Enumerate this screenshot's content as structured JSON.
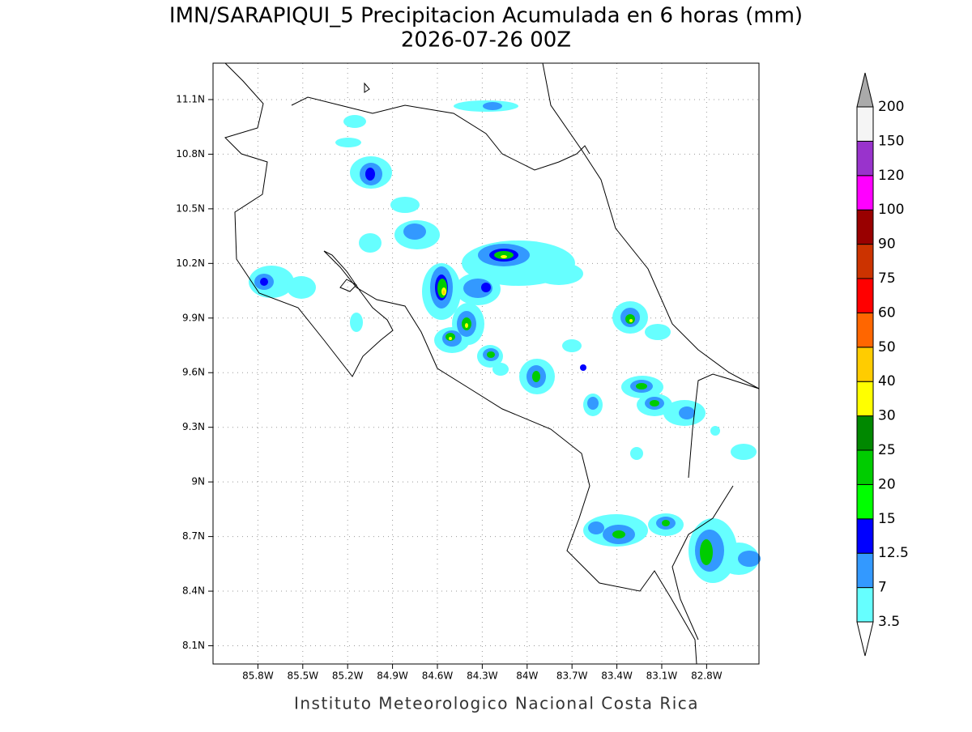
{
  "header": {
    "title": "IMN/SARAPIQUI_5 Precipitacion Acumulada en 6 horas (mm)",
    "subtitle": "2026-07-26 00Z"
  },
  "map": {
    "lonlim": [
      -86.1,
      -82.45
    ],
    "latlim": [
      8.0,
      11.3
    ],
    "lonticks": [
      {
        "value": -85.8,
        "label": "85.8W"
      },
      {
        "value": -85.5,
        "label": "85.5W"
      },
      {
        "value": -85.2,
        "label": "85.2W"
      },
      {
        "value": -84.9,
        "label": "84.9W"
      },
      {
        "value": -84.6,
        "label": "84.6W"
      },
      {
        "value": -84.3,
        "label": "84.3W"
      },
      {
        "value": -84.0,
        "label": "84W"
      },
      {
        "value": -83.7,
        "label": "83.7W"
      },
      {
        "value": -83.4,
        "label": "83.4W"
      },
      {
        "value": -83.1,
        "label": "83.1W"
      },
      {
        "value": -82.8,
        "label": "82.8W"
      }
    ],
    "latticks": [
      {
        "value": 8.1,
        "label": "8.1N"
      },
      {
        "value": 8.4,
        "label": "8.4N"
      },
      {
        "value": 8.7,
        "label": "8.7N"
      },
      {
        "value": 9.0,
        "label": "9N"
      },
      {
        "value": 9.3,
        "label": "9.3N"
      },
      {
        "value": 9.6,
        "label": "9.6N"
      },
      {
        "value": 9.9,
        "label": "9.9N"
      },
      {
        "value": 10.2,
        "label": "10.2N"
      },
      {
        "value": 10.5,
        "label": "10.5N"
      },
      {
        "value": 10.8,
        "label": "10.8N"
      },
      {
        "value": 11.1,
        "label": "11.1N"
      }
    ],
    "grid": true
  },
  "legend": {
    "levels": [
      3.5,
      7,
      12.5,
      15,
      20,
      25,
      30,
      40,
      50,
      60,
      75,
      90,
      100,
      120,
      150,
      200
    ],
    "colors": [
      "#ffffff",
      "#66ffff",
      "#3399ff",
      "#0000ff",
      "#00ff00",
      "#00cc00",
      "#008800",
      "#ffff00",
      "#ffcc00",
      "#ff6600",
      "#ff0000",
      "#cc3300",
      "#990000",
      "#ff00ff",
      "#9933cc",
      "#f5f5f5",
      "#aaaaaa"
    ]
  },
  "footer": "Instituto Meteorologico Nacional Costa Rica"
}
